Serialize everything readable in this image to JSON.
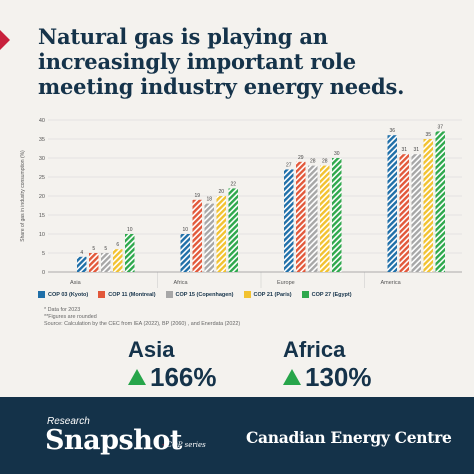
{
  "title": "Natural gas is playing an increasingly important role meeting industry energy needs.",
  "chart_data": {
    "type": "bar",
    "categories": [
      "Asia",
      "Africa",
      "Europe",
      "America"
    ],
    "ylabel": "Share of gas in industry consumption (%)",
    "ylim": [
      0,
      40
    ],
    "yticks": [
      0,
      5,
      10,
      15,
      20,
      25,
      30,
      35,
      40
    ],
    "series": [
      {
        "name": "COP 03 (Kyoto)",
        "color": "#1f6fa8",
        "values": [
          4,
          10,
          27,
          36
        ]
      },
      {
        "name": "COP 11 (Montreal)",
        "color": "#e2583a",
        "values": [
          5,
          19,
          29,
          31
        ]
      },
      {
        "name": "COP 15 (Copenhagen)",
        "color": "#a7a7a7",
        "values": [
          5,
          18,
          28,
          31
        ]
      },
      {
        "name": "COP 21 (Paris)",
        "color": "#f2c230",
        "values": [
          6,
          20,
          28,
          35
        ]
      },
      {
        "name": "COP 27 (Egypt)",
        "color": "#2ea84c",
        "values": [
          10,
          22,
          30,
          37
        ]
      }
    ],
    "hatch": "diagonal-stripes",
    "grid": true
  },
  "notes": [
    "* Data for 2023",
    "**Figures are rounded",
    "Source: Calculation by the CEC from IEA (2022), BP (2060) , and Enerdata (2022)"
  ],
  "growth": [
    {
      "region": "Asia",
      "value": "166%"
    },
    {
      "region": "Africa",
      "value": "130%"
    }
  ],
  "footer": {
    "research": "Research",
    "snapshot": "Snapshot",
    "series": "COP series",
    "brand": "Canadian Energy Centre"
  }
}
